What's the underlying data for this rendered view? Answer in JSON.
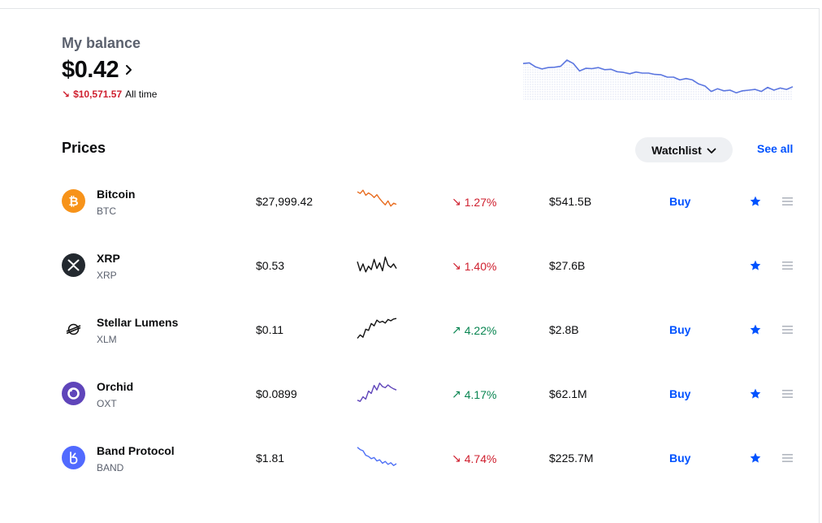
{
  "balance": {
    "label": "My balance",
    "amount": "$0.42",
    "change_arrow": "↘",
    "change_value": "$10,571.57",
    "period": "All time",
    "chart_color": "#5b76e0",
    "chart_trend": [
      0.9,
      0.92,
      0.8,
      0.74,
      0.78,
      0.79,
      0.82,
      1.0,
      0.9,
      0.68,
      0.76,
      0.75,
      0.78,
      0.72,
      0.73,
      0.66,
      0.64,
      0.6,
      0.65,
      0.62,
      0.62,
      0.58,
      0.57,
      0.5,
      0.5,
      0.42,
      0.46,
      0.42,
      0.3,
      0.24,
      0.08,
      0.16,
      0.1,
      0.12,
      0.04,
      0.1,
      0.12,
      0.14,
      0.08,
      0.2,
      0.12,
      0.18,
      0.14,
      0.22
    ]
  },
  "prices": {
    "title": "Prices",
    "watchlist_label": "Watchlist",
    "see_all_label": "See all"
  },
  "assets": [
    {
      "name": "Bitcoin",
      "symbol": "BTC",
      "price": "$27,999.42",
      "change_dir": "down",
      "change_arrow": "↘",
      "change": "1.27%",
      "market_cap": "$541.5B",
      "buy_label": "Buy",
      "show_buy": true,
      "icon": "bitcoin-icon",
      "icon_bg": "#f7931a",
      "spark_color": "#e86c1f",
      "spark": [
        0.85,
        0.78,
        0.92,
        0.7,
        0.8,
        0.72,
        0.6,
        0.72,
        0.55,
        0.4,
        0.28,
        0.45,
        0.22,
        0.35,
        0.3
      ]
    },
    {
      "name": "XRP",
      "symbol": "XRP",
      "price": "$0.53",
      "change_dir": "down",
      "change_arrow": "↘",
      "change": "1.40%",
      "market_cap": "$27.6B",
      "buy_label": "",
      "show_buy": false,
      "icon": "xrp-icon",
      "icon_bg": "#23292f",
      "spark_color": "#111111",
      "spark": [
        0.6,
        0.2,
        0.5,
        0.15,
        0.4,
        0.25,
        0.7,
        0.3,
        0.55,
        0.2,
        0.8,
        0.45,
        0.35,
        0.5,
        0.3
      ]
    },
    {
      "name": "Stellar Lumens",
      "symbol": "XLM",
      "price": "$0.11",
      "change_dir": "up",
      "change_arrow": "↗",
      "change": "4.22%",
      "market_cap": "$2.8B",
      "buy_label": "Buy",
      "show_buy": true,
      "icon": "stellar-icon",
      "icon_bg": "#ffffff",
      "spark_color": "#111111",
      "spark": [
        0.05,
        0.2,
        0.1,
        0.45,
        0.4,
        0.7,
        0.6,
        0.85,
        0.75,
        0.8,
        0.72,
        0.88,
        0.82,
        0.9,
        0.92
      ]
    },
    {
      "name": "Orchid",
      "symbol": "OXT",
      "price": "$0.0899",
      "change_dir": "up",
      "change_arrow": "↗",
      "change": "4.17%",
      "market_cap": "$62.1M",
      "buy_label": "Buy",
      "show_buy": true,
      "icon": "orchid-icon",
      "icon_bg": "#5f45ba",
      "spark_color": "#5f45ba",
      "spark": [
        0.15,
        0.1,
        0.3,
        0.2,
        0.55,
        0.45,
        0.8,
        0.6,
        0.9,
        0.75,
        0.7,
        0.82,
        0.72,
        0.65,
        0.6
      ]
    },
    {
      "name": "Band Protocol",
      "symbol": "BAND",
      "price": "$1.81",
      "change_dir": "down",
      "change_arrow": "↘",
      "change": "4.74%",
      "market_cap": "$225.7M",
      "buy_label": "Buy",
      "show_buy": true,
      "icon": "band-protocol-icon",
      "icon_bg": "#516aff",
      "spark_color": "#4c6ef5",
      "spark": [
        0.9,
        0.8,
        0.75,
        0.55,
        0.5,
        0.4,
        0.45,
        0.3,
        0.35,
        0.2,
        0.28,
        0.15,
        0.22,
        0.1,
        0.18
      ]
    }
  ]
}
